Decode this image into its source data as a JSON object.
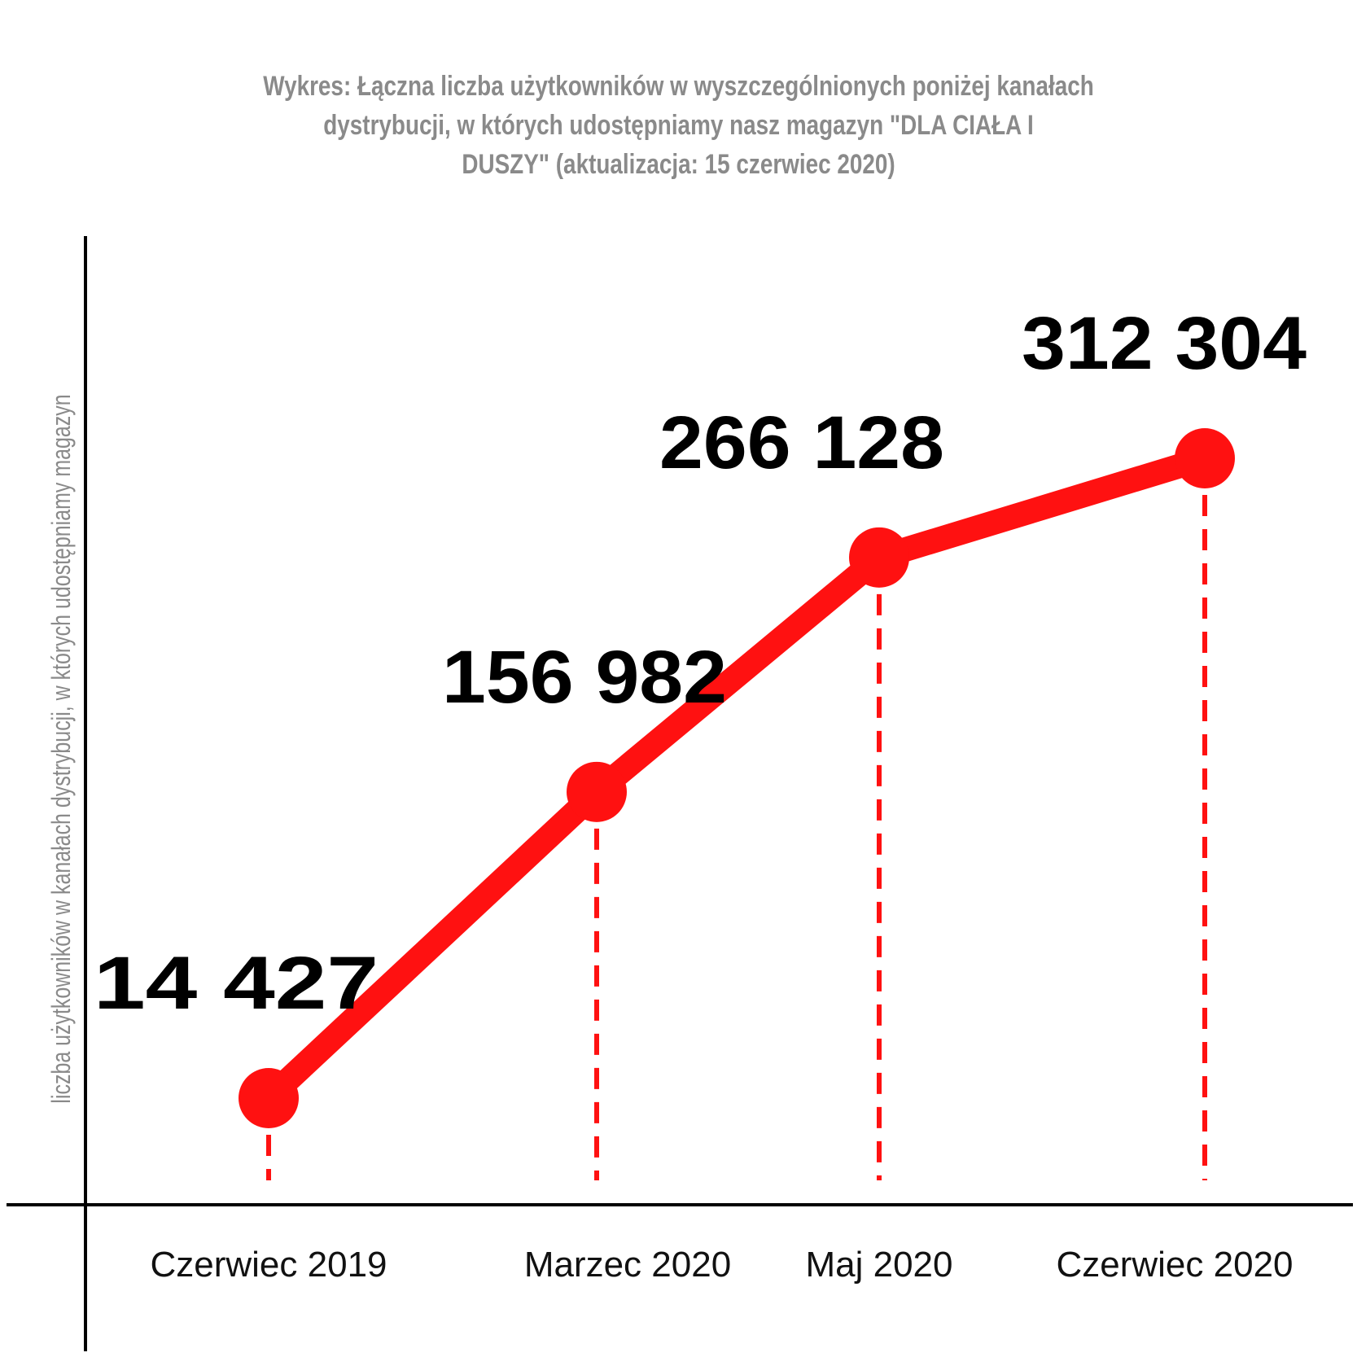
{
  "chart_data": {
    "type": "line",
    "title_lines": [
      "Wykres: Łączna liczba użytkowników w wyszczególnionych poniżej kanałach",
      "dystrybucji, w których udostępniamy nasz magazyn \"DLA CIAŁA I",
      "DUSZY\" (aktualizacja: 15 czerwiec 2020)"
    ],
    "ylabel": "liczba użytkowników w kanałach dystrybucji, w których udostępniamy magazyn",
    "xlabel": "",
    "categories": [
      "Czerwiec 2019",
      "Marzec 2020",
      "Maj 2020",
      "Czerwiec 2020"
    ],
    "values": [
      14427,
      156982,
      266128,
      312304
    ],
    "value_labels": [
      "14 427",
      "156 982",
      "266 128",
      "312 304"
    ],
    "line_color": "#ff1111",
    "axis_color": "#000000",
    "grid": false,
    "legend": "none"
  }
}
